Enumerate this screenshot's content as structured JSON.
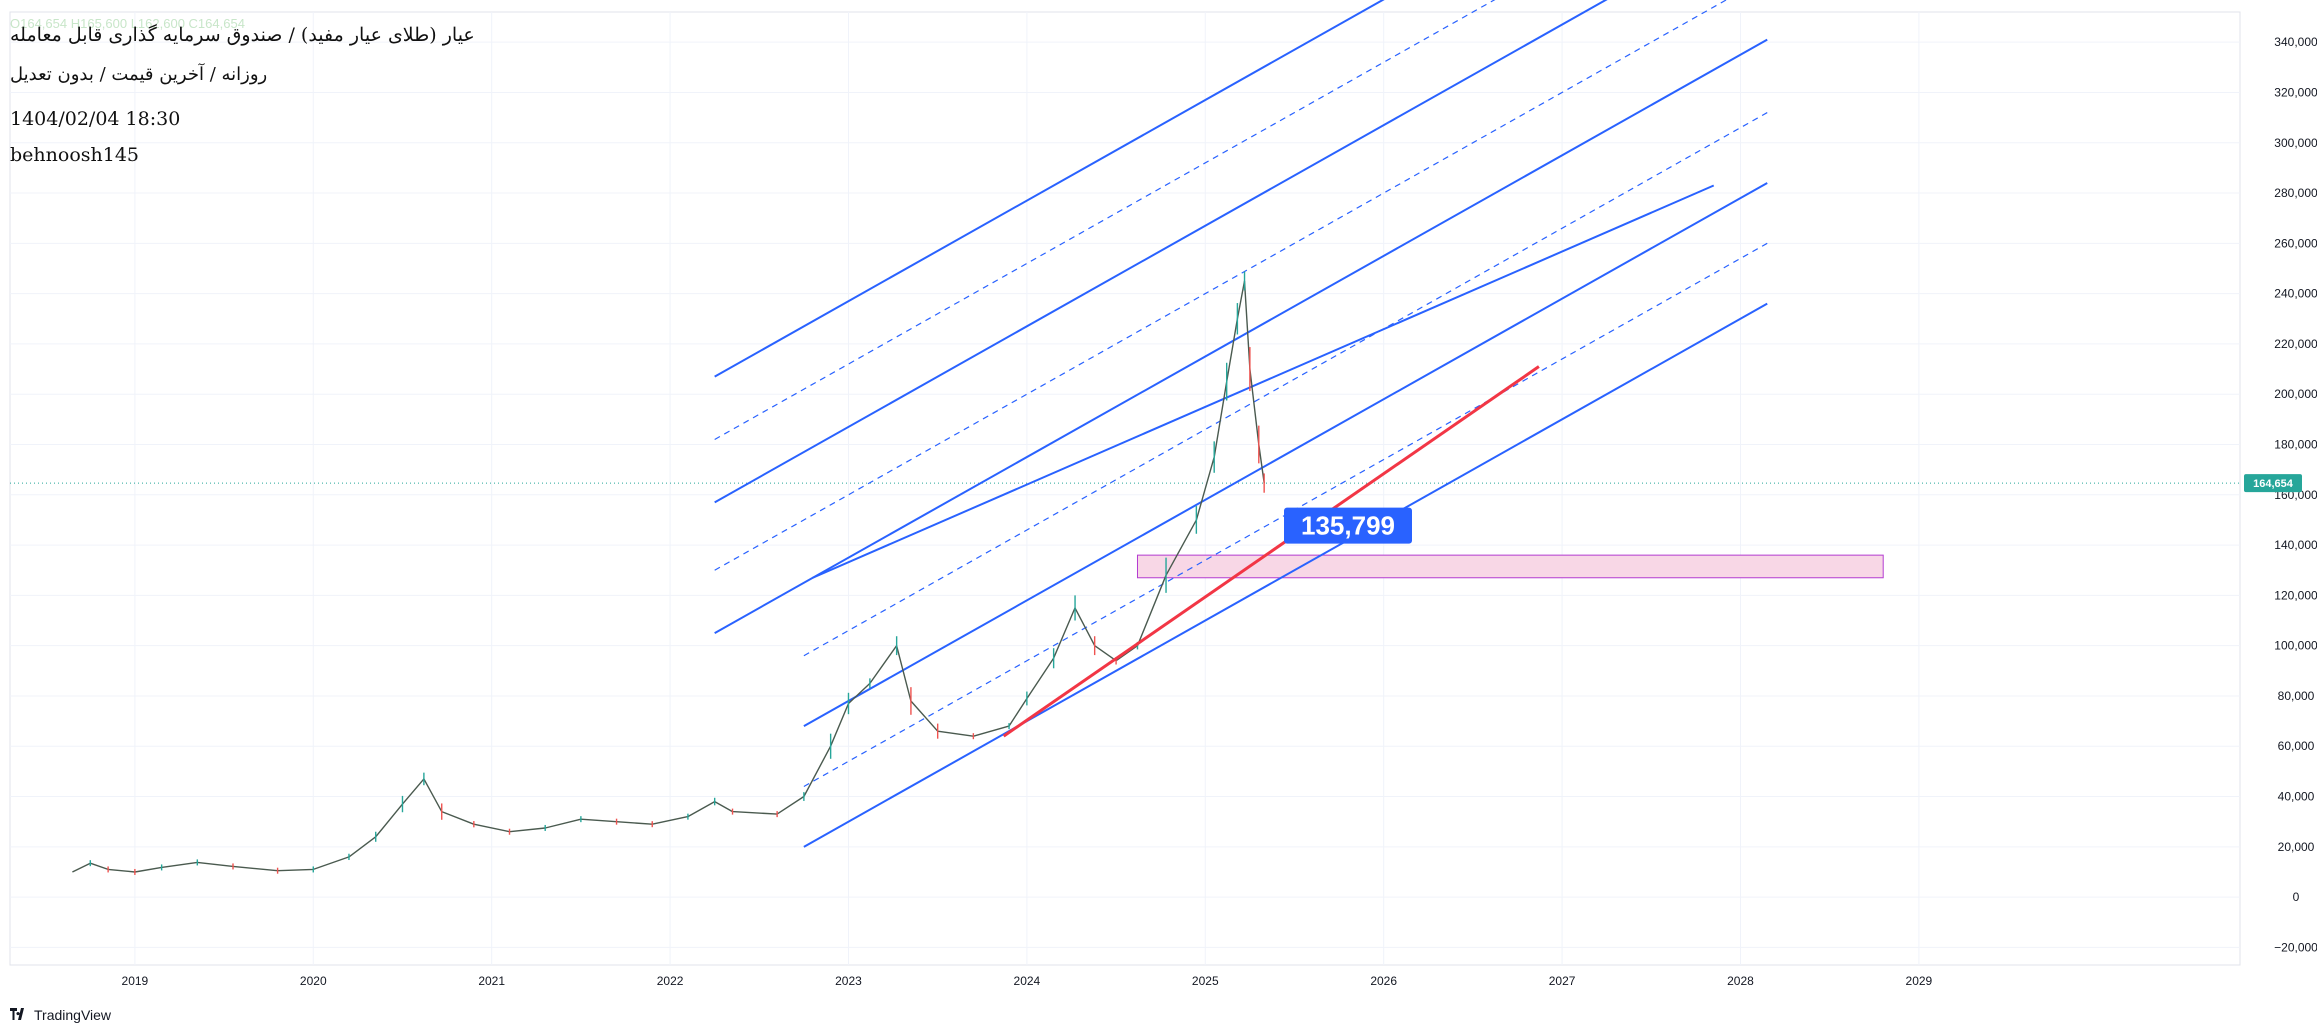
{
  "header": {
    "title": "عیار (طلای عیار مفید) / صندوق سرمایه گذاری قابل معامله",
    "subtitle": "روزانه / آخرین قیمت / بدون تعدیل",
    "datetime": "1404/02/04 18:30",
    "author": "behnoosh145",
    "ohlc_faded": "O164,654 H165,600 L162,600 C164,654"
  },
  "footer": {
    "brand": "TradingView",
    "logo_icon": "tradingview-logo-icon"
  },
  "chart_data": {
    "type": "line",
    "title": "عیار (طلای عیار مفید) / صندوق سرمایه گذاری قابل معامله",
    "x_axis": {
      "ticks": [
        "2019",
        "2020",
        "2021",
        "2022",
        "2023",
        "2024",
        "2025",
        "2026",
        "2027",
        "2028",
        "2029"
      ],
      "range": [
        2018.3,
        2030.8
      ]
    },
    "y_axis": {
      "ticks": [
        "340,000",
        "320,000",
        "300,000",
        "280,000",
        "260,000",
        "240,000",
        "220,000",
        "200,000",
        "180,000",
        "160,000",
        "140,000",
        "120,000",
        "100,000",
        "80,000",
        "60,000",
        "40,000",
        "20,000",
        "0",
        "−20,000"
      ],
      "range": [
        -27000,
        352000
      ],
      "position": "right",
      "tick_step": 20000
    },
    "grid": true,
    "last_price": {
      "value": 164654,
      "label": "164,654",
      "color": "#26a69a"
    },
    "price_series": {
      "name": "",
      "points": [
        [
          2018.65,
          10000
        ],
        [
          2018.75,
          13500
        ],
        [
          2018.85,
          11000
        ],
        [
          2019.0,
          10000
        ],
        [
          2019.15,
          11800
        ],
        [
          2019.35,
          13800
        ],
        [
          2019.55,
          12200
        ],
        [
          2019.8,
          10500
        ],
        [
          2020.0,
          11000
        ],
        [
          2020.2,
          16000
        ],
        [
          2020.35,
          24000
        ],
        [
          2020.5,
          37000
        ],
        [
          2020.62,
          47000
        ],
        [
          2020.72,
          34000
        ],
        [
          2020.9,
          29000
        ],
        [
          2021.1,
          26000
        ],
        [
          2021.3,
          27500
        ],
        [
          2021.5,
          31000
        ],
        [
          2021.7,
          30000
        ],
        [
          2021.9,
          29000
        ],
        [
          2022.1,
          32000
        ],
        [
          2022.25,
          38000
        ],
        [
          2022.35,
          34000
        ],
        [
          2022.6,
          33000
        ],
        [
          2022.75,
          40000
        ],
        [
          2022.9,
          60000
        ],
        [
          2023.0,
          77000
        ],
        [
          2023.12,
          85000
        ],
        [
          2023.27,
          100000
        ],
        [
          2023.35,
          78000
        ],
        [
          2023.5,
          66000
        ],
        [
          2023.7,
          64000
        ],
        [
          2023.9,
          68000
        ],
        [
          2024.0,
          79000
        ],
        [
          2024.15,
          95000
        ],
        [
          2024.27,
          115000
        ],
        [
          2024.38,
          100000
        ],
        [
          2024.5,
          94000
        ],
        [
          2024.62,
          100000
        ],
        [
          2024.78,
          128000
        ],
        [
          2024.95,
          150000
        ],
        [
          2025.05,
          175000
        ],
        [
          2025.12,
          205000
        ],
        [
          2025.18,
          230000
        ],
        [
          2025.22,
          245000
        ],
        [
          2025.25,
          210000
        ],
        [
          2025.3,
          180000
        ],
        [
          2025.33,
          164654
        ]
      ]
    },
    "channel": {
      "color": "#2962ff",
      "anchor_start": [
        2023.0,
        0
      ],
      "slope_per_year": 40000,
      "solid_offsets": [
        {
          "offset": 30000,
          "x_range": [
            2022.75,
            2028.15
          ]
        },
        {
          "offset": 78000,
          "x_range": [
            2022.75,
            2028.15
          ]
        },
        {
          "offset": 135000,
          "x_range": [
            2022.25,
            2028.15
          ]
        },
        {
          "offset": 187000,
          "x_range": [
            2022.25,
            2028.15
          ]
        },
        {
          "offset": 237000,
          "x_range": [
            2022.25,
            2027.35
          ]
        }
      ],
      "dashed_offsets": [
        {
          "offset": 54000,
          "x_range": [
            2022.75,
            2028.15
          ]
        },
        {
          "offset": 106000,
          "x_range": [
            2022.75,
            2028.15
          ]
        },
        {
          "offset": 160000,
          "x_range": [
            2022.25,
            2028.15
          ]
        },
        {
          "offset": 212000,
          "x_range": [
            2022.25,
            2027.9
          ]
        }
      ],
      "extra_solid": {
        "from": [
          2022.8,
          127000
        ],
        "to": [
          2027.85,
          283000
        ]
      }
    },
    "trendline": {
      "color": "#f23645",
      "from": [
        2023.87,
        64000
      ],
      "to": [
        2026.87,
        211000
      ]
    },
    "support_zone": {
      "color": "#f8d7e6",
      "border": "#b33bd1",
      "x_range": [
        2024.62,
        2028.8
      ],
      "y_range": [
        127000,
        136000
      ]
    },
    "callout": {
      "label": "135,799",
      "value": 135799,
      "color": "#2962ff",
      "x": 2025.8
    }
  }
}
